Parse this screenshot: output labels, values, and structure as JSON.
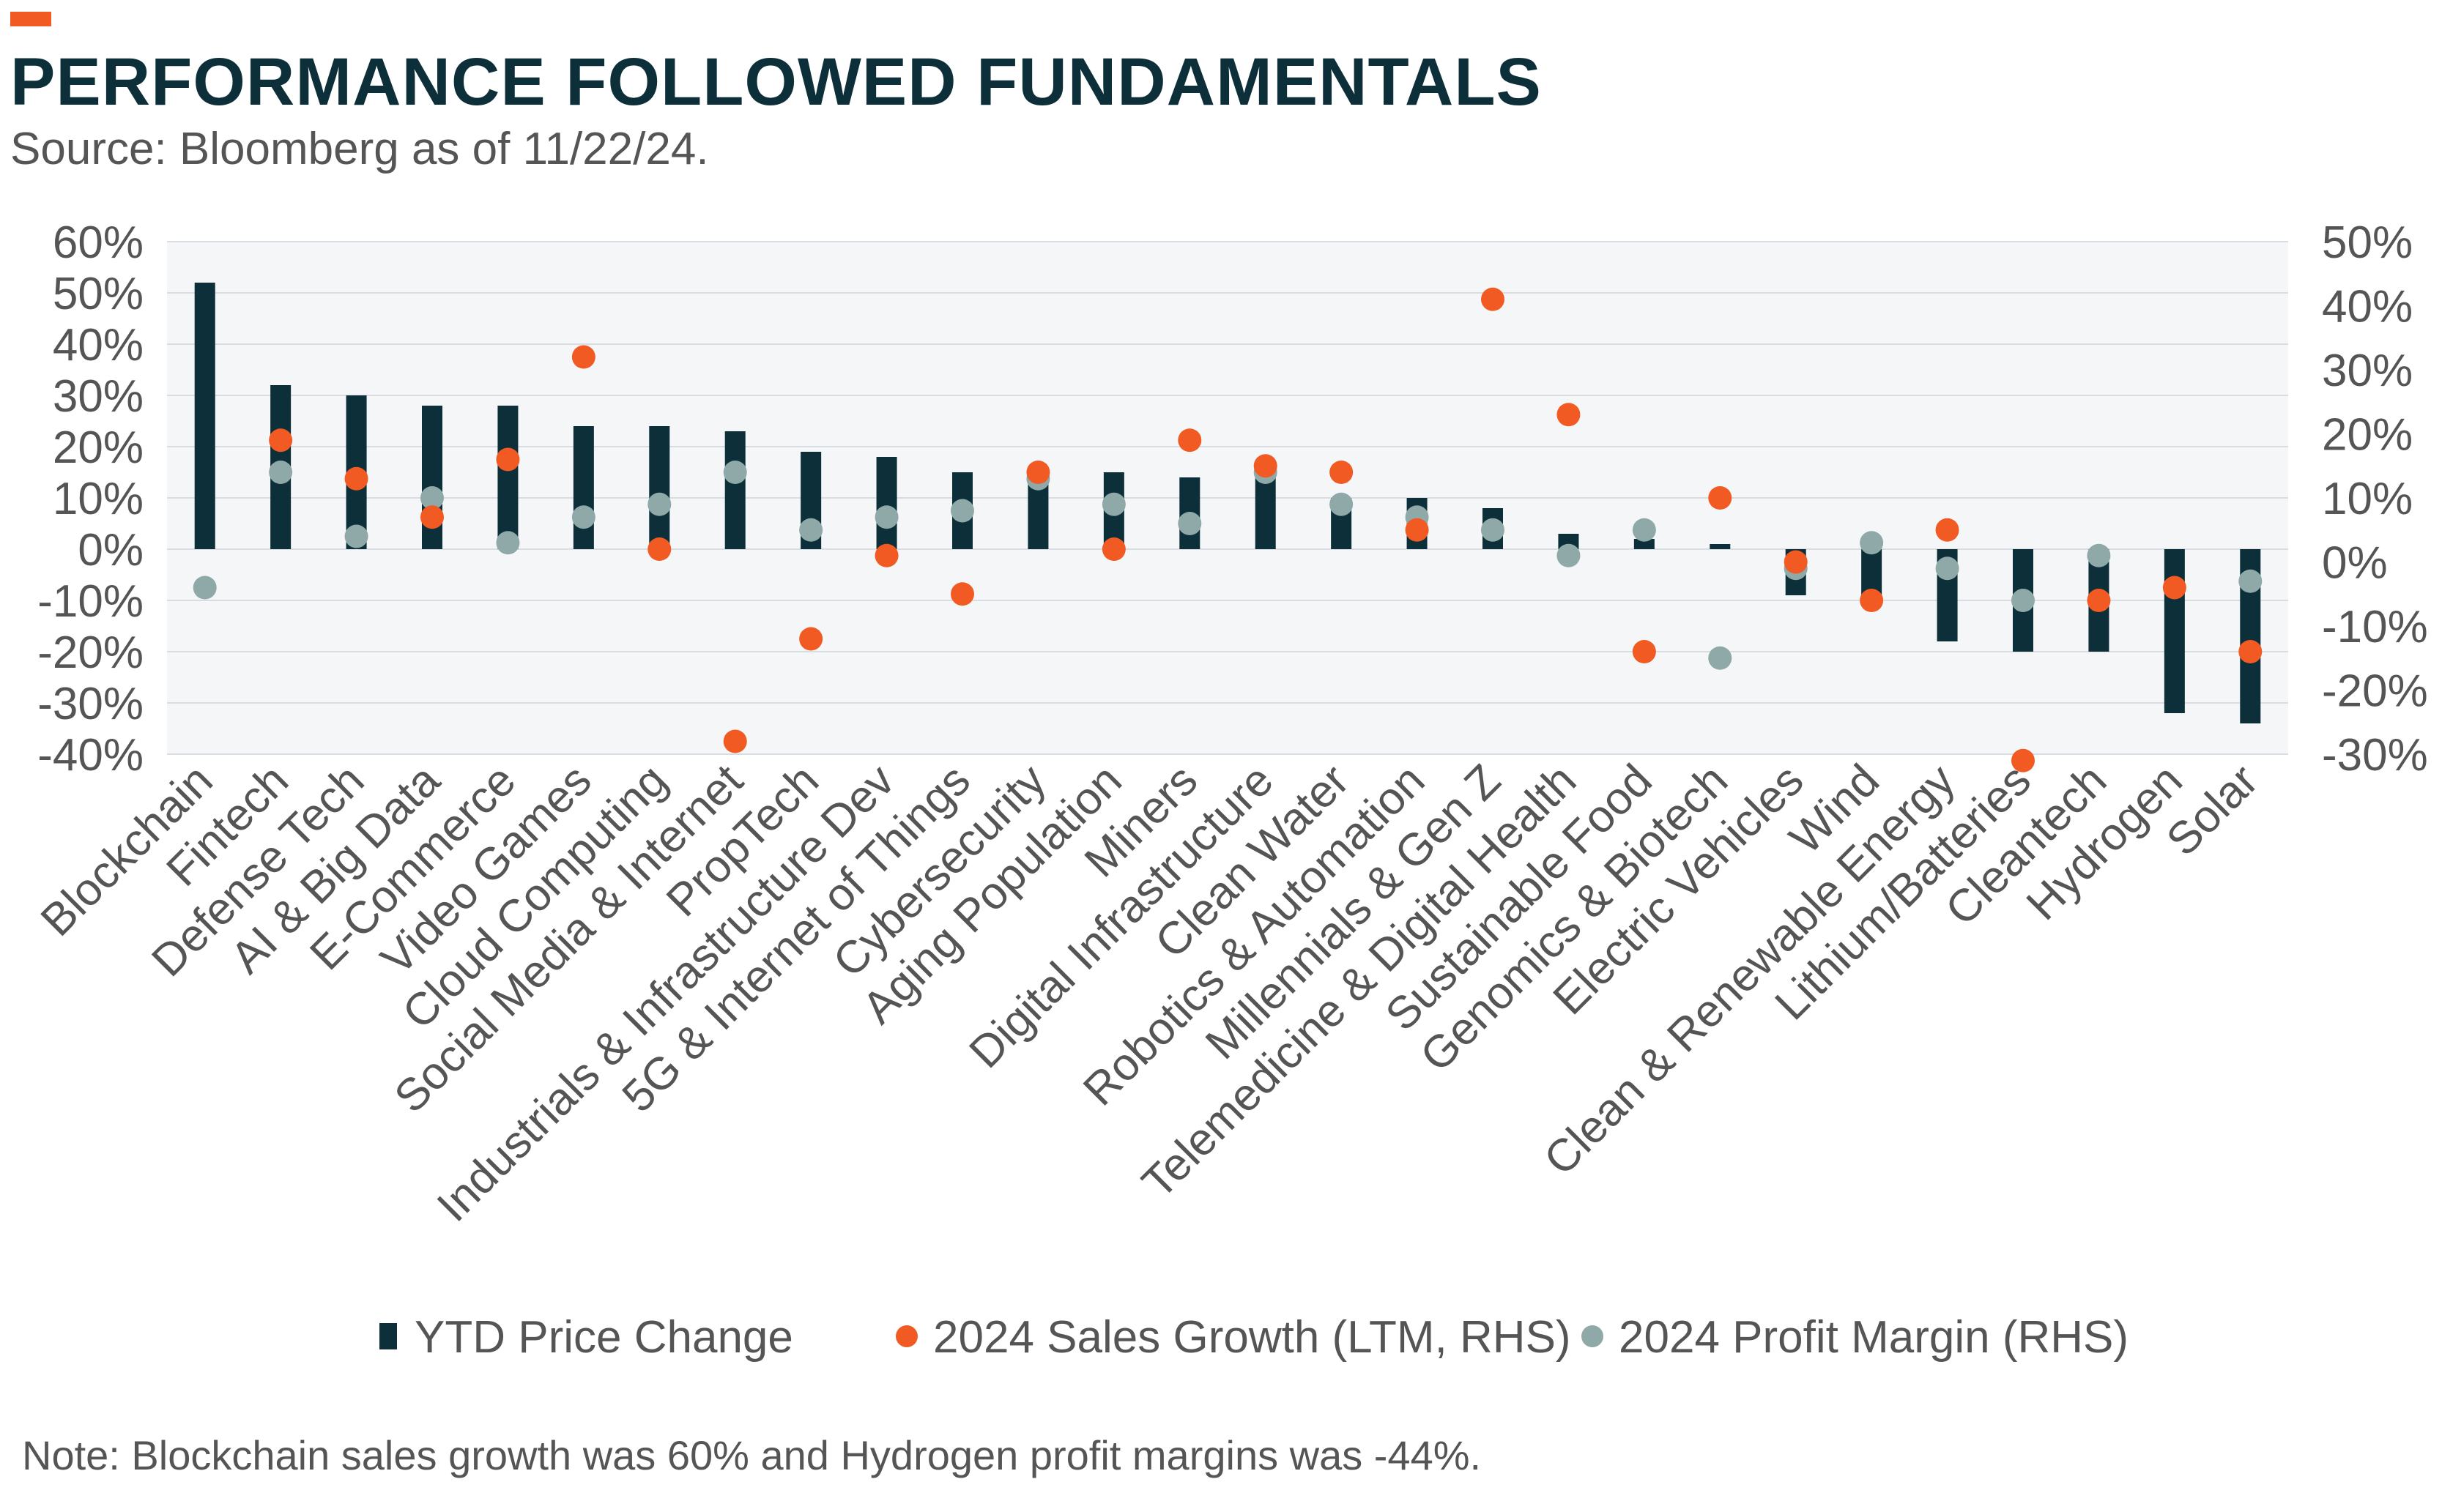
{
  "header": {
    "title": "PERFORMANCE FOLLOWED FUNDAMENTALS",
    "subtitle": "Source: Bloomberg as of 11/22/24."
  },
  "footer": {
    "note": "Note: Blockchain sales growth was 60% and Hydrogen profit margins was -44%."
  },
  "colors": {
    "accent": "#f15a22",
    "bar": "#0d2f3a",
    "sales": "#f15a22",
    "margin": "#8fa8a8",
    "plot_bg": "#f5f6f8",
    "grid": "#d9dde2",
    "tick_text": "#555555"
  },
  "chart_data": {
    "type": "bar",
    "categories": [
      "Blockchain",
      "Fintech",
      "Defense Tech",
      "AI & Big Data",
      "E-Commerce",
      "Video Games",
      "Cloud Computing",
      "Social Media & Internet",
      "PropTech",
      "Industrials & Infrastructure Dev",
      "5G & Internet of Things",
      "Cybersecurity",
      "Aging Population",
      "Miners",
      "Digital Infrastructure",
      "Clean Water",
      "Robotics & Automation",
      "Millennials & Gen Z",
      "Telemedicine & Digital Health",
      "Sustainable Food",
      "Genomics & Biotech",
      "Electric Vehicles",
      "Wind",
      "Clean & Renewable Energy",
      "Lithium/Batteries",
      "Cleantech",
      "Hydrogen",
      "Solar"
    ],
    "series": [
      {
        "name": "YTD Price Change",
        "type": "bar",
        "axis": "left",
        "values": [
          52,
          32,
          30,
          28,
          28,
          24,
          24,
          23,
          19,
          18,
          15,
          16,
          15,
          14,
          14,
          10,
          10,
          8,
          3,
          2,
          1,
          -9,
          -10,
          -18,
          -20,
          -20,
          -32,
          -34
        ]
      },
      {
        "name": "2024 Sales Growth (LTM, RHS)",
        "type": "scatter",
        "axis": "right",
        "values": [
          null,
          19,
          13,
          7,
          16,
          32,
          2,
          -28,
          -12,
          1,
          -5,
          14,
          2,
          19,
          15,
          14,
          5,
          41,
          23,
          -14,
          10,
          0,
          -6,
          5,
          -31,
          -6,
          -4,
          -14
        ]
      },
      {
        "name": "2024 Profit Margin (RHS)",
        "type": "scatter",
        "axis": "right",
        "values": [
          -4,
          14,
          4,
          10,
          3,
          7,
          9,
          14,
          5,
          7,
          8,
          13,
          9,
          6,
          14,
          9,
          7,
          5,
          1,
          5,
          -15,
          -1,
          3,
          -1,
          -6,
          1,
          null,
          -3
        ]
      }
    ],
    "ylim_left": [
      -40,
      60
    ],
    "yticks_left": [
      -40,
      -30,
      -20,
      -10,
      0,
      10,
      20,
      30,
      40,
      50,
      60
    ],
    "ylim_right": [
      -30,
      50
    ],
    "yticks_right": [
      -30,
      -20,
      -10,
      0,
      10,
      20,
      30,
      40,
      50
    ],
    "grid": true,
    "legend_position": "bottom"
  }
}
